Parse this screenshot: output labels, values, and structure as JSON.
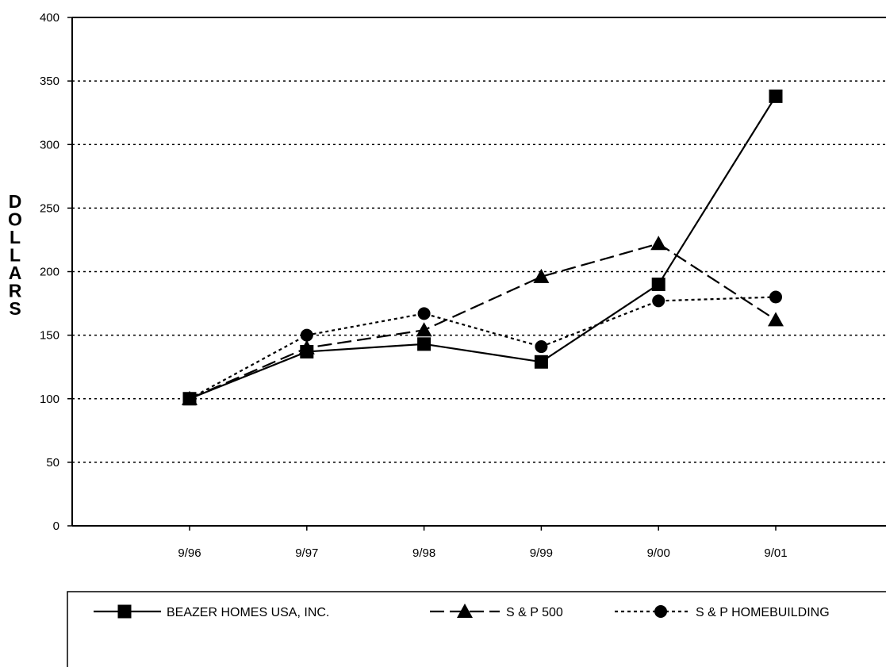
{
  "chart_data": {
    "type": "line",
    "title": "",
    "xlabel": "",
    "ylabel": "DOLLARS",
    "categories": [
      "9/96",
      "9/97",
      "9/98",
      "9/99",
      "9/00",
      "9/01"
    ],
    "ylim": [
      0,
      400
    ],
    "yticks": [
      0,
      50,
      100,
      150,
      200,
      250,
      300,
      350,
      400
    ],
    "grid": "horizontal dotted",
    "legend_position": "bottom",
    "series": [
      {
        "name": "BEAZER HOMES USA, INC.",
        "marker": "square",
        "line": "solid",
        "values": [
          100,
          137,
          143,
          129,
          190,
          338
        ]
      },
      {
        "name": "S & P 500",
        "marker": "triangle",
        "line": "dashed",
        "values": [
          100,
          140,
          154,
          196,
          222,
          162
        ]
      },
      {
        "name": "S & P HOMEBUILDING",
        "marker": "circle",
        "line": "dotted",
        "values": [
          100,
          150,
          167,
          141,
          177,
          180
        ]
      }
    ]
  }
}
